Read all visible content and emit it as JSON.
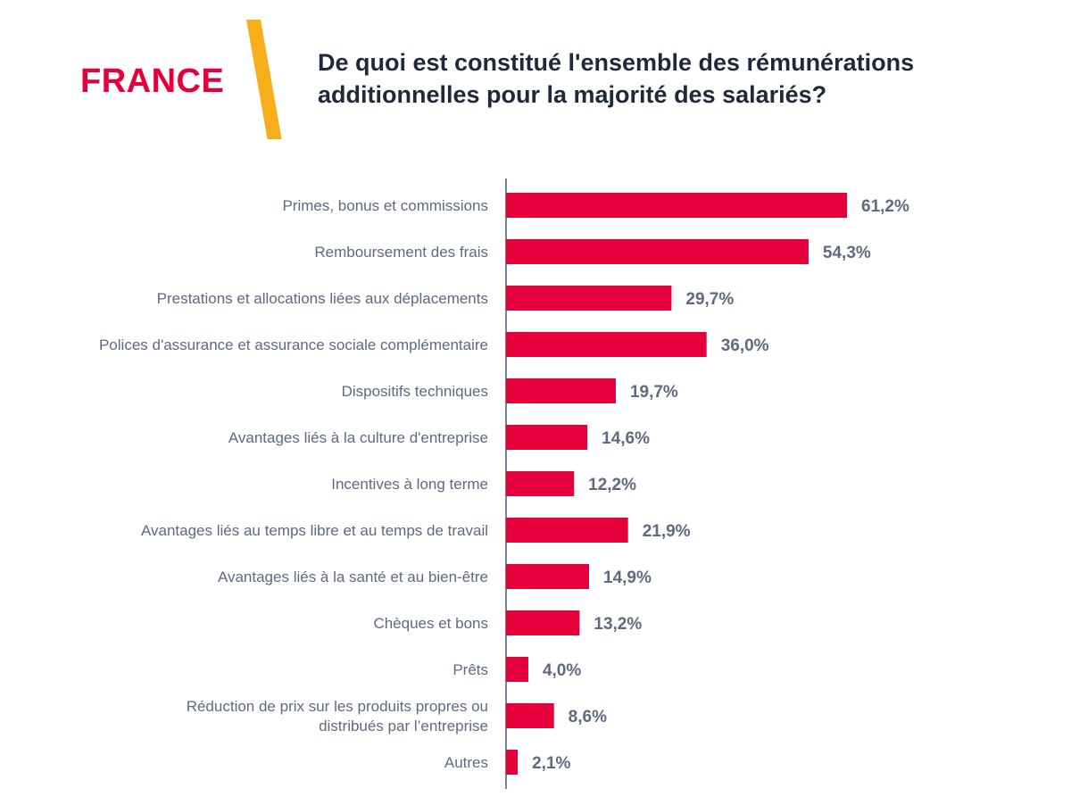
{
  "header": {
    "country": "FRANCE",
    "title_lines": [
      "De quoi est constitué l'ensemble des rémunérations",
      "additionnelles pour la majorité des salariés?"
    ]
  },
  "colors": {
    "bar": "#e4003a",
    "accent": "#f6ae1a",
    "title": "#1e2a3c",
    "label": "#5d6a82",
    "axis": "#4c5a73"
  },
  "chart_data": {
    "type": "bar",
    "orientation": "horizontal",
    "title": "De quoi est constitué l'ensemble des rémunérations additionnelles pour la majorité des salariés?",
    "xlabel": "",
    "ylabel": "",
    "xlim": [
      0,
      61.2
    ],
    "grid": false,
    "legend": "none",
    "categories": [
      [
        "Primes, bonus et commissions"
      ],
      [
        "Remboursement des frais"
      ],
      [
        "Prestations et allocations liées aux déplacements"
      ],
      [
        "Polices d'assurance et assurance sociale complémentaire"
      ],
      [
        "Dispositifs techniques"
      ],
      [
        "Avantages liés à la culture d'entreprise"
      ],
      [
        "Incentives à long terme"
      ],
      [
        "Avantages liés au temps libre et au temps de travail"
      ],
      [
        "Avantages liés à la santé et au bien-être"
      ],
      [
        "Chèques et bons"
      ],
      [
        "Prêts"
      ],
      [
        "Réduction de prix sur les produits propres ou",
        "distribués par l’entreprise"
      ],
      [
        "Autres"
      ]
    ],
    "values": [
      61.2,
      54.3,
      29.7,
      36.0,
      19.7,
      14.6,
      12.2,
      21.9,
      14.9,
      13.2,
      4.0,
      8.6,
      2.1
    ],
    "value_labels": [
      "61,2%",
      "54,3%",
      "29,7%",
      "36,0%",
      "19,7%",
      "14,6%",
      "12,2%",
      "21,9%",
      "14,9%",
      "13,2%",
      "4,0%",
      "8,6%",
      "2,1%"
    ]
  }
}
